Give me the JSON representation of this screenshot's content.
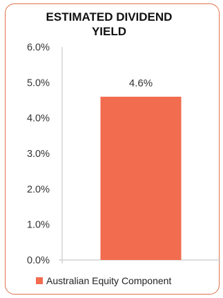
{
  "chart_data": {
    "type": "bar",
    "title": "ESTIMATED DIVIDEND YIELD",
    "xlabel": "",
    "ylabel": "",
    "categories": [
      ""
    ],
    "series": [
      {
        "name": "Australian Equity Component",
        "values": [
          4.6
        ],
        "data_labels": [
          "4.6%"
        ],
        "color": "#f26c4f"
      }
    ],
    "ylim": [
      0,
      6
    ],
    "y_ticks": [
      0,
      1,
      2,
      3,
      4,
      5,
      6
    ],
    "y_tick_labels": [
      "0.0%",
      "1.0%",
      "2.0%",
      "3.0%",
      "4.0%",
      "5.0%",
      "6.0%"
    ],
    "grid": false,
    "legend_position": "bottom"
  },
  "colors": {
    "border": "#e0704a",
    "bar": "#f26c4f",
    "axis": "#bfbfbf"
  }
}
